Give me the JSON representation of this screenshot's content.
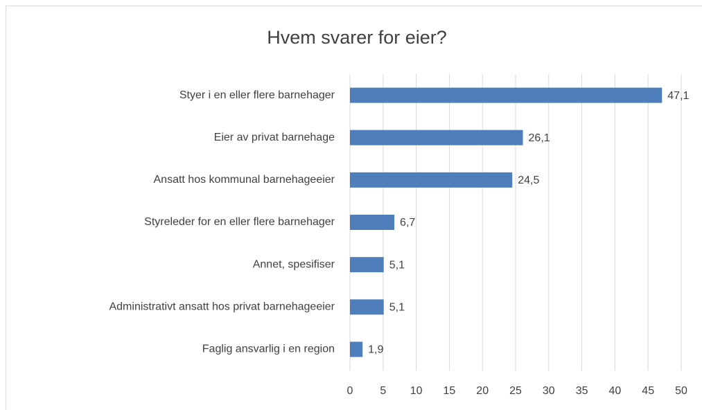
{
  "chart_data": {
    "type": "bar",
    "orientation": "horizontal",
    "title": "Hvem svarer for eier?",
    "categories": [
      "Styer i en eller flere barnehager",
      "Eier av privat barnehage",
      "Ansatt hos kommunal barnehageeier",
      "Styreleder for en eller flere barnehager",
      "Annet, spesifiser",
      "Administrativt ansatt hos privat barnehageeier",
      "Faglig ansvarlig i en region"
    ],
    "values": [
      47.1,
      26.1,
      24.5,
      6.7,
      5.1,
      5.1,
      1.9
    ],
    "value_labels": [
      "47,1",
      "26,1",
      "24,5",
      "6,7",
      "5,1",
      "5,1",
      "1,9"
    ],
    "color": "#4e7fbc",
    "xlim": [
      0,
      50
    ],
    "xticks": [
      0,
      5,
      10,
      15,
      20,
      25,
      30,
      35,
      40,
      45,
      50
    ],
    "grid": true
  }
}
